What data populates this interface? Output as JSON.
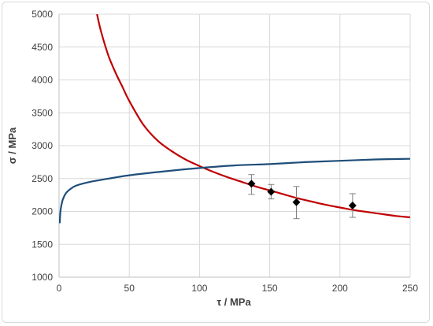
{
  "chart_data": {
    "type": "scatter",
    "title": "",
    "xlabel": "τ / MPa",
    "ylabel": "σ / MPa",
    "xlim": [
      0,
      250
    ],
    "ylim": [
      1000,
      5000
    ],
    "xticks": [
      0,
      50,
      100,
      150,
      200,
      250
    ],
    "yticks": [
      1000,
      1500,
      2000,
      2500,
      3000,
      3500,
      4000,
      4500,
      5000
    ],
    "grid": true,
    "legend": "none",
    "series": [
      {
        "type": "line",
        "color": "#c00000",
        "x": [
          27,
          30,
          35,
          40,
          45,
          50,
          60,
          70,
          80,
          90,
          100,
          110,
          120,
          130,
          140,
          150,
          160,
          170,
          180,
          190,
          200,
          210,
          220,
          230,
          240,
          250
        ],
        "y": [
          5000,
          4730,
          4380,
          4120,
          3900,
          3680,
          3320,
          3080,
          2920,
          2790,
          2690,
          2600,
          2520,
          2450,
          2380,
          2320,
          2260,
          2200,
          2150,
          2100,
          2060,
          2020,
          1990,
          1960,
          1930,
          1910
        ]
      },
      {
        "type": "line",
        "color": "#1f4e79",
        "x": [
          0.5,
          1,
          2,
          3,
          5,
          8,
          12,
          20,
          30,
          50,
          75,
          100,
          125,
          150,
          175,
          200,
          225,
          250
        ],
        "y": [
          1820,
          2000,
          2130,
          2200,
          2280,
          2340,
          2390,
          2440,
          2480,
          2550,
          2610,
          2660,
          2700,
          2720,
          2750,
          2770,
          2790,
          2800
        ]
      },
      {
        "type": "scatter",
        "color": "#000000",
        "marker": "diamond",
        "x": [
          137,
          151,
          169,
          209
        ],
        "y": [
          2420,
          2300,
          2140,
          2090
        ],
        "error_low": [
          2260,
          2190,
          1890,
          1910
        ],
        "error_high": [
          2560,
          2410,
          2380,
          2270
        ]
      }
    ]
  }
}
